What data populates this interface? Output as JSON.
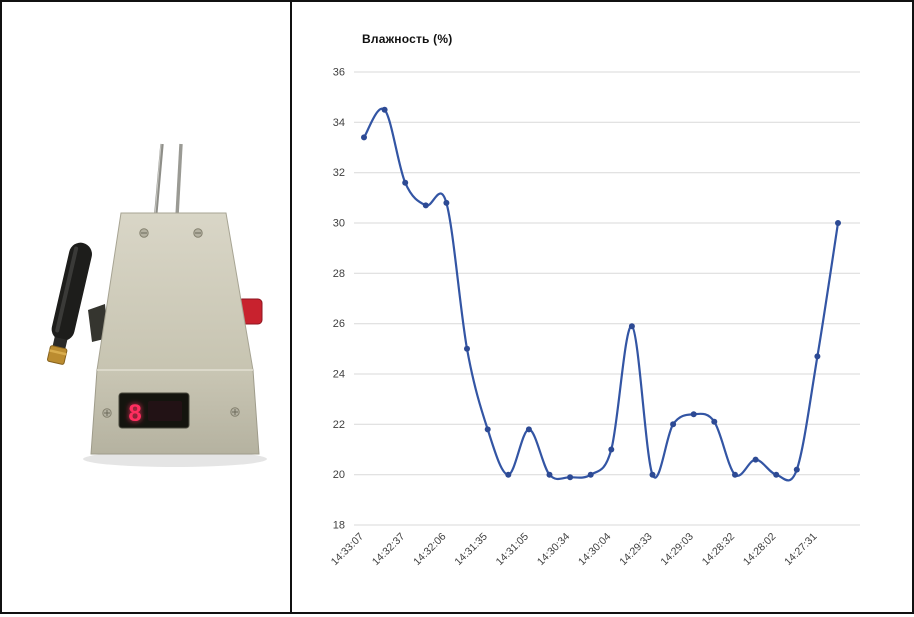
{
  "window": {
    "background": "#ffffff",
    "border_color": "#111111"
  },
  "device": {
    "name": "wireless humidity sensor with probe electrodes",
    "display_text": "8",
    "body_color": "#c7c4b2",
    "display_glow_color": "#ff2d5e"
  },
  "chart_data": {
    "type": "line",
    "title": "Влажность (%)",
    "xlabel": "",
    "ylabel": "",
    "ylim": [
      18,
      36
    ],
    "ytick_step": 2,
    "grid": true,
    "legend_position": "none",
    "line_color": "#3355a4",
    "marker_color": "#2d4a94",
    "gridline_color": "#d9d9d9",
    "tick_color": "#404040",
    "label_every": 2,
    "x_labels": [
      "14:33:07",
      "14:32:37",
      "14:32:06",
      "14:31:35",
      "14:31:05",
      "14:30:34",
      "14:30:04",
      "14:29:33",
      "14:29:03",
      "14:28:32",
      "14:28:02",
      "14:27:31"
    ],
    "series": [
      {
        "name": "Влажность",
        "values": [
          33.4,
          34.5,
          31.6,
          30.7,
          30.8,
          25.0,
          21.8,
          20.0,
          21.8,
          20.0,
          19.9,
          20.0,
          21.0,
          25.9,
          20.0,
          22.0,
          22.4,
          22.1,
          20.0,
          20.6,
          20.0,
          20.2,
          24.7,
          30.0
        ]
      }
    ]
  }
}
